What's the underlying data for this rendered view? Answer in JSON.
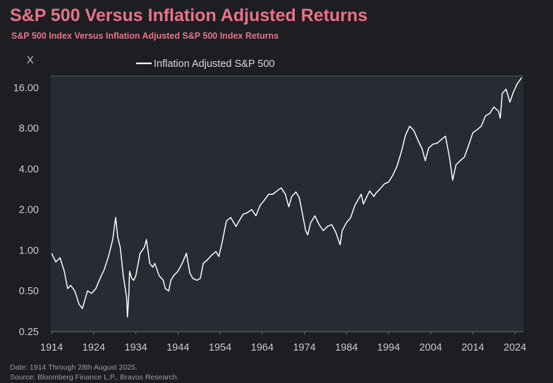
{
  "header": {
    "title": "S&P 500 Versus Inflation Adjusted Returns",
    "subtitle": "S&P 500 Index Versus Inflation Adjusted S&P 500 Index Returns"
  },
  "footer": {
    "date_note": "Date: 1914 Through 28th August 2025.",
    "source_note": "Source: Bloomberg Finance L.P., Bravos Research."
  },
  "colors": {
    "background": "#1c1e22",
    "plot_background": "#272b34",
    "accent": "#e8738a",
    "line": "#ffffff"
  },
  "chart_data": {
    "type": "line",
    "yscale": "log2",
    "y_unit_label": "X",
    "ylim": [
      0.25,
      19.5
    ],
    "xlim": [
      1913.8,
      2026
    ],
    "x_ticks": [
      1914,
      1924,
      1934,
      1944,
      1954,
      1964,
      1974,
      1984,
      1994,
      2004,
      2014,
      2024
    ],
    "y_ticks": [
      0.25,
      0.5,
      1.0,
      2.0,
      4.0,
      8.0,
      16.0
    ],
    "y_tick_labels": [
      "0.25",
      "0.50",
      "1.00",
      "2.00",
      "4.00",
      "8.00",
      "16.00"
    ],
    "grid": false,
    "legend_position": "top-left",
    "series": [
      {
        "name": "Inflation Adjusted S&P 500",
        "color": "#ffffff",
        "x": [
          1914.0,
          1915.0,
          1916.0,
          1917.0,
          1917.8,
          1918.5,
          1919.5,
          1920.5,
          1921.3,
          1921.8,
          1922.5,
          1923.5,
          1924.5,
          1925.5,
          1926.5,
          1927.5,
          1928.5,
          1929.2,
          1929.7,
          1930.3,
          1931.0,
          1931.8,
          1932.0,
          1932.3,
          1932.5,
          1933.0,
          1933.5,
          1934.0,
          1935.0,
          1936.0,
          1936.5,
          1937.3,
          1938.0,
          1938.5,
          1939.5,
          1940.5,
          1941.0,
          1941.8,
          1942.3,
          1943.0,
          1944.0,
          1945.0,
          1946.0,
          1946.8,
          1947.5,
          1948.5,
          1949.3,
          1950.0,
          1951.0,
          1952.0,
          1953.0,
          1953.7,
          1954.5,
          1955.5,
          1956.5,
          1957.8,
          1958.5,
          1959.5,
          1960.5,
          1961.5,
          1962.5,
          1963.5,
          1964.5,
          1965.5,
          1966.5,
          1967.5,
          1968.5,
          1969.5,
          1970.3,
          1971.0,
          1972.0,
          1972.8,
          1973.5,
          1974.3,
          1974.8,
          1975.5,
          1976.5,
          1977.5,
          1978.5,
          1979.5,
          1980.5,
          1981.5,
          1982.5,
          1983.0,
          1984.0,
          1985.0,
          1986.0,
          1987.5,
          1988.0,
          1989.5,
          1990.5,
          1991.0,
          1992.0,
          1993.0,
          1994.0,
          1995.0,
          1996.0,
          1997.0,
          1998.0,
          1999.0,
          2000.0,
          2001.0,
          2002.0,
          2002.7,
          2003.5,
          2004.5,
          2005.5,
          2006.5,
          2007.5,
          2008.5,
          2009.2,
          2010.0,
          2011.0,
          2012.0,
          2013.0,
          2014.0,
          2015.0,
          2016.0,
          2017.0,
          2018.0,
          2019.0,
          2020.1,
          2020.5,
          2021.0,
          2021.9,
          2022.8,
          2023.5,
          2024.5,
          2025.6
        ],
        "values": [
          0.95,
          0.82,
          0.88,
          0.7,
          0.52,
          0.55,
          0.5,
          0.4,
          0.37,
          0.42,
          0.5,
          0.48,
          0.52,
          0.62,
          0.72,
          0.9,
          1.2,
          1.75,
          1.25,
          1.05,
          0.65,
          0.45,
          0.32,
          0.45,
          0.7,
          0.62,
          0.6,
          0.65,
          0.95,
          1.05,
          1.2,
          0.8,
          0.75,
          0.8,
          0.65,
          0.6,
          0.52,
          0.5,
          0.6,
          0.65,
          0.7,
          0.8,
          0.95,
          0.68,
          0.62,
          0.6,
          0.62,
          0.8,
          0.85,
          0.92,
          0.98,
          0.9,
          1.15,
          1.65,
          1.75,
          1.5,
          1.65,
          1.85,
          1.9,
          2.0,
          1.8,
          2.15,
          2.35,
          2.6,
          2.6,
          2.75,
          2.9,
          2.6,
          2.1,
          2.5,
          2.7,
          2.45,
          1.9,
          1.4,
          1.3,
          1.6,
          1.8,
          1.55,
          1.4,
          1.5,
          1.55,
          1.35,
          1.1,
          1.4,
          1.6,
          1.75,
          2.15,
          2.6,
          2.2,
          2.75,
          2.5,
          2.65,
          2.85,
          3.1,
          3.2,
          3.6,
          4.2,
          5.3,
          7.1,
          8.3,
          7.7,
          6.5,
          5.6,
          4.6,
          5.7,
          6.1,
          6.2,
          6.6,
          7.0,
          4.8,
          3.3,
          4.3,
          4.6,
          4.9,
          6.0,
          7.4,
          7.8,
          8.3,
          9.9,
          10.3,
          11.5,
          10.7,
          9.5,
          14.5,
          15.6,
          12.5,
          14.5,
          17.0,
          19.0
        ]
      }
    ]
  }
}
